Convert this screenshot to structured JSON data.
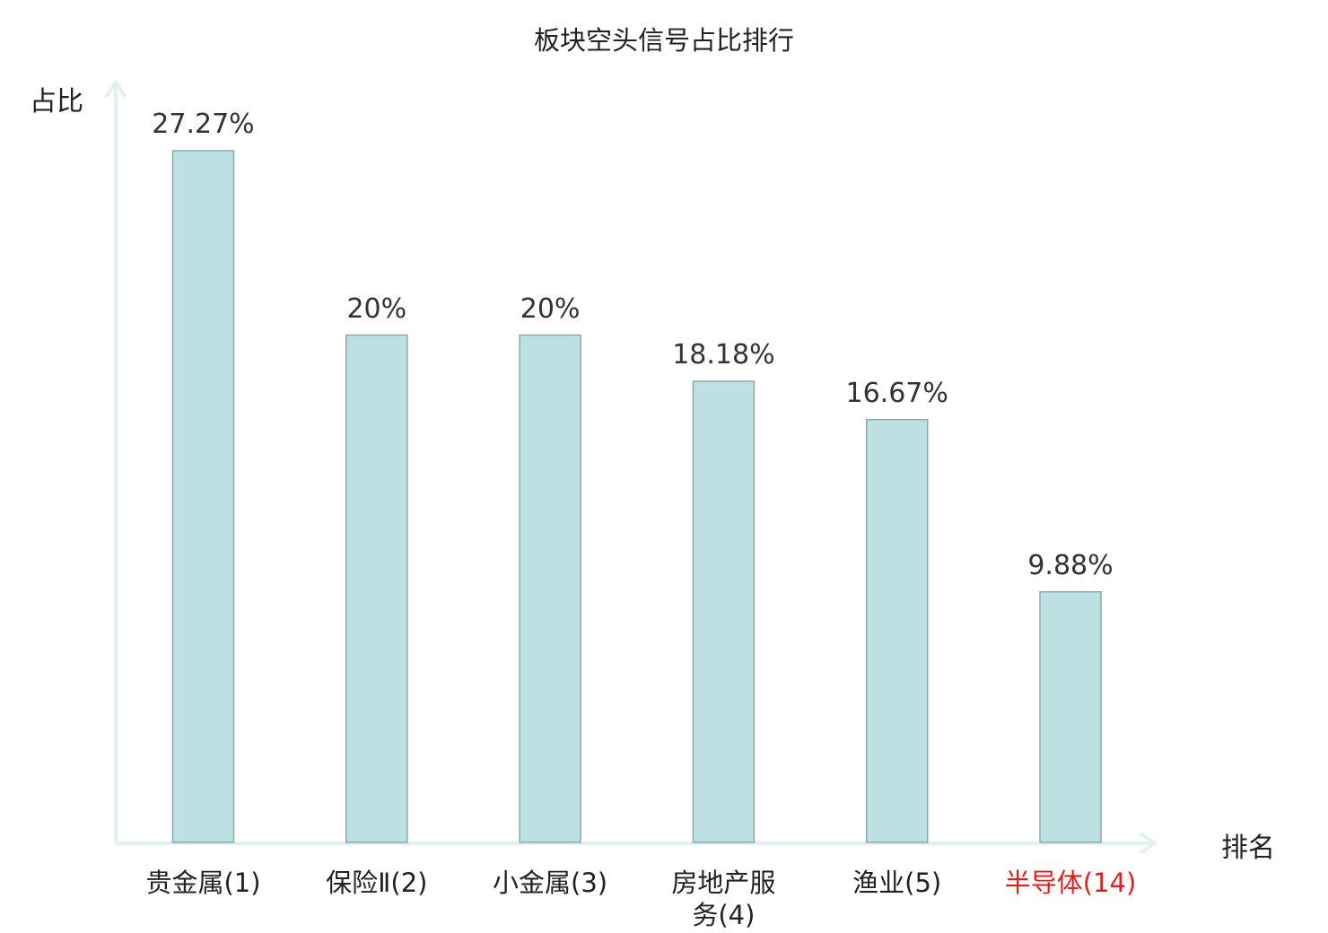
{
  "chart_data": {
    "type": "bar",
    "title": "板块空头信号占比排行",
    "xlabel": "排名",
    "ylabel": "占比",
    "categories": [
      "贵金属(1)",
      "保险Ⅱ(2)",
      "小金属(3)",
      "房地产服务(4)",
      "渔业(5)",
      "半导体(14)"
    ],
    "category_label_lines": [
      [
        "贵金属(1)"
      ],
      [
        "保险Ⅱ(2)"
      ],
      [
        "小金属(3)"
      ],
      [
        "房地产服",
        "务(4)"
      ],
      [
        "渔业(5)"
      ],
      [
        "半导体(14)"
      ]
    ],
    "values": [
      27.27,
      20,
      20,
      18.18,
      16.67,
      9.88
    ],
    "value_labels": [
      "27.27%",
      "20%",
      "20%",
      "18.18%",
      "16.67%",
      "9.88%"
    ],
    "highlight_index": 5,
    "ylim": [
      0,
      30
    ],
    "grid": false,
    "colors": {
      "bar_fill": "#bde0e2",
      "bar_stroke": "#8fa7aa",
      "axis": "#dff2f0",
      "highlight_label": "#e02020",
      "text": "#222222"
    }
  }
}
